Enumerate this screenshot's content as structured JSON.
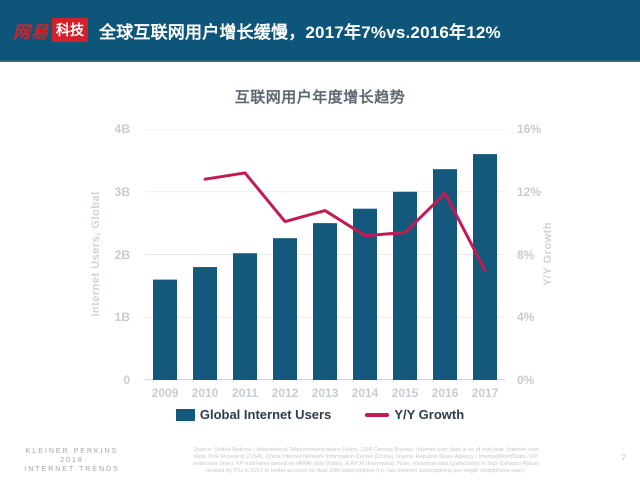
{
  "header": {
    "logo_name": "网易",
    "logo_badge": "科技",
    "title": "全球互联网用户增长缓慢，2017年7%vs.2016年12%"
  },
  "chart": {
    "title": "互联网用户年度增长趋势",
    "left_axis_label": "Internet Users, Global",
    "right_axis_label": "Y/Y Growth",
    "legend": [
      {
        "label": "Global Internet Users",
        "swatch": "bar"
      },
      {
        "label": "Y/Y Growth",
        "swatch": "line"
      }
    ]
  },
  "chart_data": {
    "type": "bar",
    "subtype": "combo-bar-line",
    "title": "互联网用户年度增长趋势",
    "categories": [
      "2009",
      "2010",
      "2011",
      "2012",
      "2013",
      "2014",
      "2015",
      "2016",
      "2017"
    ],
    "series": [
      {
        "name": "Global Internet Users",
        "type": "bar",
        "axis": "left",
        "unit": "billions",
        "values": [
          1.6,
          1.8,
          2.02,
          2.26,
          2.5,
          2.73,
          3.0,
          3.36,
          3.6
        ]
      },
      {
        "name": "Y/Y Growth",
        "type": "line",
        "axis": "right",
        "unit": "percent",
        "values": [
          null,
          12.8,
          13.2,
          10.1,
          10.8,
          9.2,
          9.4,
          11.9,
          7.0
        ]
      }
    ],
    "left_axis": {
      "label": "Internet Users, Global",
      "min": 0,
      "max": 4,
      "ticks": [
        "0",
        "1B",
        "2B",
        "3B",
        "4B"
      ]
    },
    "right_axis": {
      "label": "Y/Y Growth",
      "min": 0,
      "max": 16,
      "ticks": [
        "0%",
        "4%",
        "8%",
        "12%",
        "16%"
      ]
    },
    "grid": true,
    "legend_position": "bottom"
  },
  "footer": {
    "brand_lines": [
      "KLEINER PERKINS",
      "2018",
      "INTERNET TRENDS"
    ],
    "source_lines": [
      "Source: United Nations / International Telecommunications Union, USA Census Bureau. Internet user data is as of mid-year. Internet user",
      "data: Pew Research (USA), China Internet Network Information Center (China), Islamic Republic News Agency / InternetWorldStats / KP",
      "estimates (Iran), KP estimates based on IAMAI data (India), & APJII (Indonesia). Note: Historical data (particularly in Sub-Saharan Africa)",
      "revised by ITU in 2017 to better account for dual-SIM subscriptions (i.e. two Internet subscriptions per single smartphone user)."
    ],
    "page_number": "7"
  },
  "colors": {
    "header_bg": "#0e5679",
    "logo_red": "#d3202a",
    "bar": "#14587c",
    "line": "#c41a54",
    "tick_text": "#c6ccd2",
    "legend_text": "#2e3d4d",
    "chart_title_text": "#5d6772"
  }
}
